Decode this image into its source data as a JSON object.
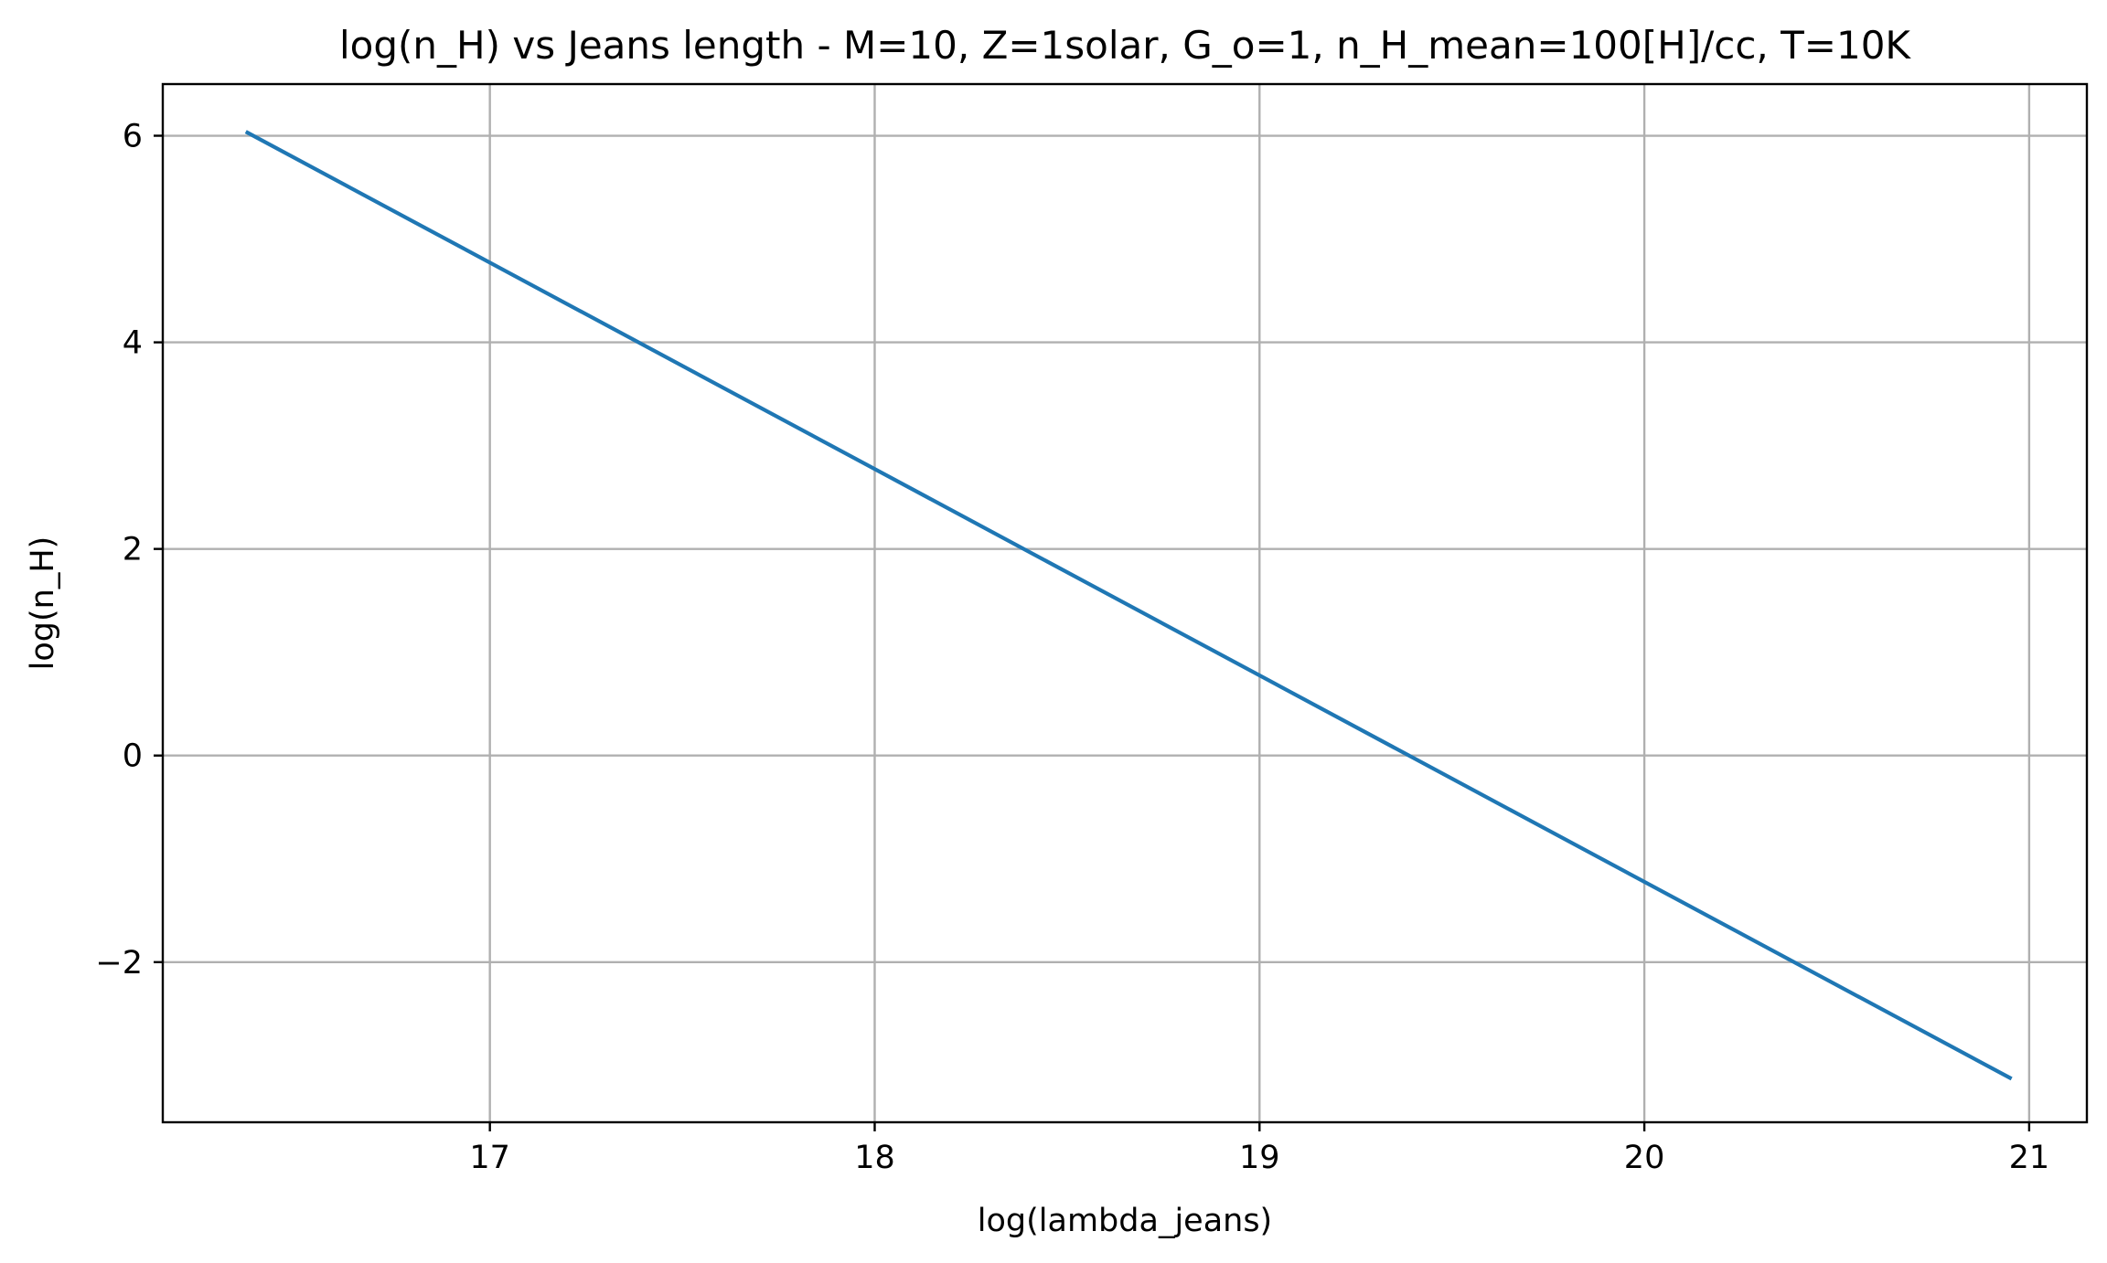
{
  "chart_data": {
    "type": "line",
    "title": "log(n_H) vs Jeans length - M=10, Z=1solar, G_o=1, n_H_mean=100[H]/cc, T=10K",
    "xlabel": "log(lambda_jeans)",
    "ylabel": "log(n_H)",
    "xlim": [
      16.15,
      21.15
    ],
    "ylim": [
      -3.55,
      6.5
    ],
    "xticks": [
      17,
      18,
      19,
      20,
      21
    ],
    "xtick_labels": [
      "17",
      "18",
      "19",
      "20",
      "21"
    ],
    "yticks": [
      -2,
      0,
      2,
      4,
      6
    ],
    "ytick_labels": [
      "−2",
      "0",
      "2",
      "4",
      "6"
    ],
    "grid": true,
    "series": [
      {
        "color": "#1f77b4",
        "x": [
          16.37,
          20.95
        ],
        "y": [
          6.03,
          -3.12
        ]
      }
    ]
  }
}
